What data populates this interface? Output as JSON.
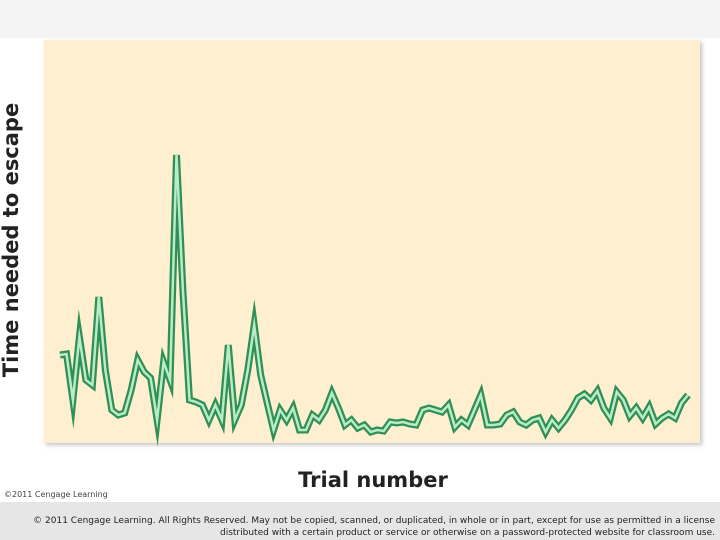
{
  "chart_data": {
    "type": "line",
    "x_label": "Trial number",
    "y_label": "Time needed to escape",
    "credit": "©2011 Cengage Learning",
    "footer": [
      "© 2011 Cengage Learning. All Rights Reserved. May not be copied, scanned, or duplicated, in whole or in part, except for use as permitted in a license",
      "distributed with a certain product or service or otherwise on a password-protected website for classroom use."
    ],
    "color": "#2f8f55",
    "ylim": [
      0,
      403
    ],
    "values": [
      88,
      89,
      43,
      106,
      63,
      58,
      146,
      73,
      33,
      28,
      30,
      53,
      83,
      71,
      65,
      23,
      81,
      63,
      288,
      151,
      43,
      41,
      38,
      23,
      38,
      23,
      98,
      23,
      38,
      73,
      118,
      68,
      40,
      13,
      33,
      23,
      35,
      13,
      13,
      28,
      23,
      33,
      50,
      35,
      18,
      23,
      15,
      18,
      11,
      13,
      12,
      21,
      20,
      21,
      19,
      18,
      33,
      35,
      33,
      31,
      38,
      16,
      23,
      18,
      33,
      48,
      18,
      18,
      19,
      28,
      31,
      21,
      18,
      23,
      25,
      11,
      23,
      15,
      23,
      33,
      45,
      49,
      43,
      52,
      35,
      25,
      51,
      43,
      27,
      35,
      25,
      36,
      19,
      25,
      29,
      25,
      40,
      48
    ]
  }
}
